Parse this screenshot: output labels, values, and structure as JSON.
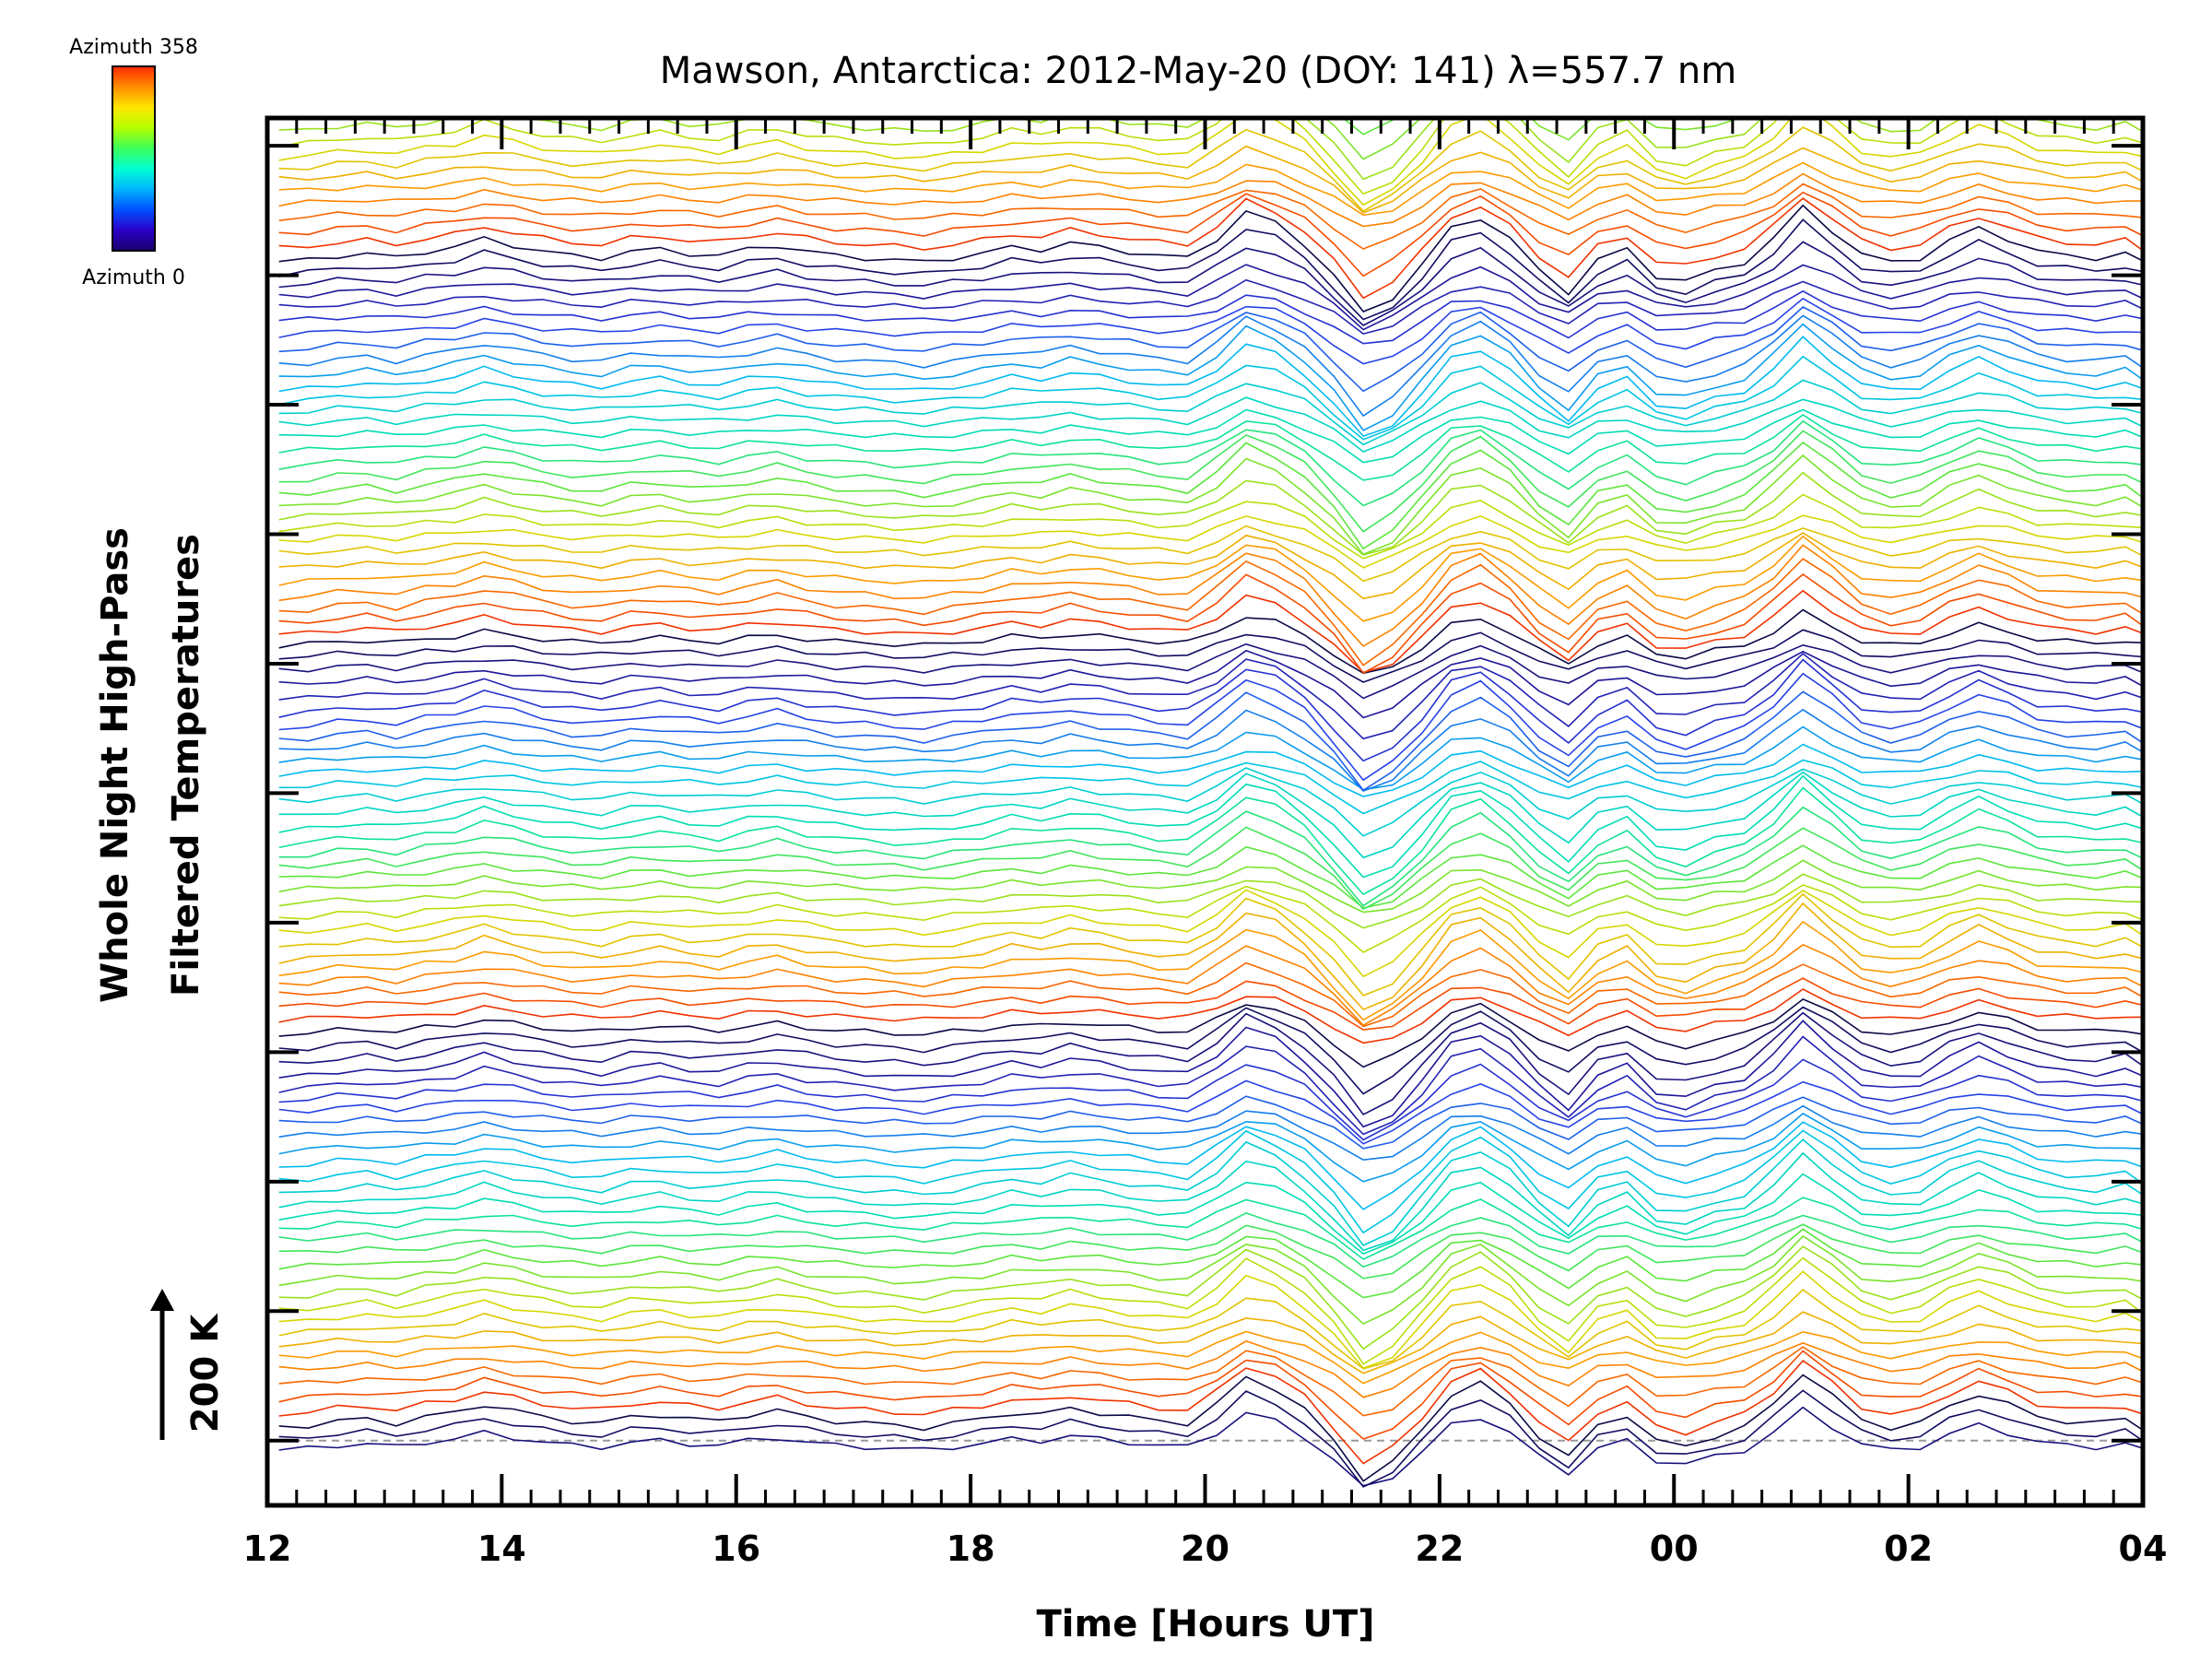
{
  "chart_data": {
    "type": "line",
    "title": "Mawson, Antarctica: 2012-May-20 (DOY: 141) λ=557.7 nm",
    "xlabel": "Time [Hours UT]",
    "ylabel_line1": "Whole Night High-Pass",
    "ylabel_line2": "Filtered Temperatures",
    "scale_label": "200 K",
    "colorbar": {
      "top_label": "Azimuth 358",
      "bottom_label": "Azimuth 0",
      "colors": [
        "#1a006e",
        "#2b00c8",
        "#0050ff",
        "#00b4ff",
        "#00ffd2",
        "#3cff5a",
        "#b4ff00",
        "#ffe600",
        "#ff8c00",
        "#ff2800"
      ]
    },
    "x_unit": "hours since 12:00 UT",
    "xlim": [
      0,
      16
    ],
    "x_ticks": [
      {
        "value": 0,
        "label": "12"
      },
      {
        "value": 2,
        "label": "14"
      },
      {
        "value": 4,
        "label": "16"
      },
      {
        "value": 6,
        "label": "18"
      },
      {
        "value": 8,
        "label": "20"
      },
      {
        "value": 10,
        "label": "22"
      },
      {
        "value": 12,
        "label": "00"
      },
      {
        "value": 14,
        "label": "02"
      },
      {
        "value": 16,
        "label": "04"
      }
    ],
    "series_count": 150,
    "series_offset_K": 14,
    "y_major_tick_spacing_K": 140,
    "ylim_K": [
      -70,
      1430
    ],
    "baseline_dashed_K": 0,
    "x": [
      0.1,
      0.35,
      0.6,
      0.85,
      1.1,
      1.35,
      1.6,
      1.85,
      2.1,
      2.35,
      2.6,
      2.85,
      3.1,
      3.35,
      3.6,
      3.85,
      4.1,
      4.35,
      4.6,
      4.85,
      5.1,
      5.35,
      5.6,
      5.85,
      6.1,
      6.35,
      6.6,
      6.85,
      7.1,
      7.35,
      7.6,
      7.85,
      8.1,
      8.35,
      8.6,
      8.85,
      9.1,
      9.35,
      9.6,
      9.85,
      10.1,
      10.35,
      10.6,
      10.85,
      11.1,
      11.35,
      11.6,
      11.85,
      12.1,
      12.35,
      12.6,
      12.85,
      13.1,
      13.35,
      13.6,
      13.85,
      14.1,
      14.35,
      14.6,
      14.85,
      15.1,
      15.35,
      15.6,
      15.85,
      16.0
    ],
    "reference_profile_K": [
      -12,
      -10,
      -6,
      -4,
      -8,
      -2,
      2,
      10,
      4,
      -2,
      -6,
      -8,
      -2,
      0,
      -4,
      -6,
      0,
      4,
      -2,
      -6,
      -8,
      -10,
      -12,
      -8,
      -4,
      2,
      0,
      6,
      2,
      -2,
      -6,
      -8,
      10,
      35,
      25,
      5,
      -25,
      -60,
      -45,
      -15,
      20,
      30,
      10,
      -20,
      -40,
      -10,
      0,
      -25,
      -30,
      -20,
      -12,
      10,
      40,
      18,
      -5,
      -12,
      -8,
      8,
      20,
      10,
      -2,
      -6,
      -8,
      -4,
      -12
    ]
  }
}
